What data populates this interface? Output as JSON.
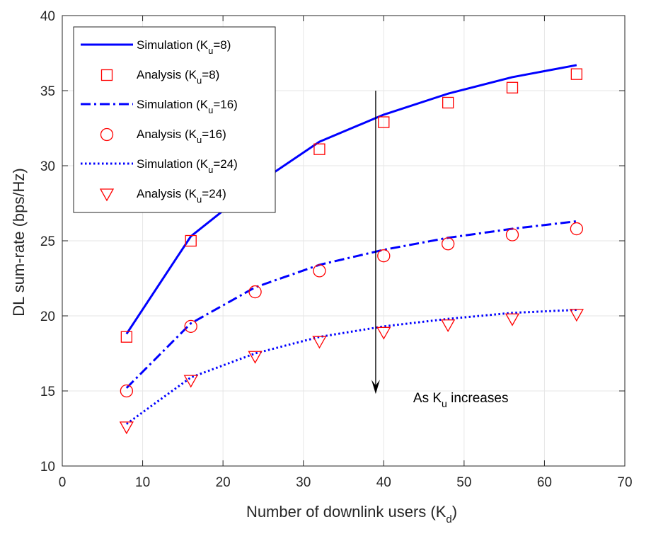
{
  "chart_data": {
    "type": "line",
    "xlabel": "Number of downlink users (K",
    "xlabel_sub": "d",
    "xlabel_end": ")",
    "ylabel": "DL sum-rate (bps/Hz)",
    "xlim": [
      0,
      70
    ],
    "ylim": [
      10,
      40
    ],
    "xticks": [
      0,
      10,
      20,
      30,
      40,
      50,
      60,
      70
    ],
    "yticks": [
      10,
      15,
      20,
      25,
      30,
      35,
      40
    ],
    "grid": true,
    "legend_position": "top-left",
    "x": [
      8,
      16,
      24,
      32,
      40,
      48,
      56,
      64
    ],
    "series": [
      {
        "name": "Simulation (K",
        "sub": "u",
        "suffix": "=8)",
        "kind": "line",
        "style": "solid",
        "color": "#0000ff",
        "values": [
          18.8,
          25.3,
          28.7,
          31.6,
          33.4,
          34.8,
          35.9,
          36.7
        ]
      },
      {
        "name": "Analysis (K",
        "sub": "u",
        "suffix": "=8)",
        "kind": "marker",
        "marker": "square",
        "color": "#ff0000",
        "values": [
          18.6,
          25.0,
          28.3,
          31.1,
          32.9,
          34.2,
          35.2,
          36.1
        ]
      },
      {
        "name": "Simulation (K",
        "sub": "u",
        "suffix": "=16)",
        "kind": "line",
        "style": "dashdot",
        "color": "#0000ff",
        "values": [
          15.2,
          19.5,
          21.9,
          23.4,
          24.4,
          25.2,
          25.8,
          26.3
        ]
      },
      {
        "name": "Analysis (K",
        "sub": "u",
        "suffix": "=16)",
        "kind": "marker",
        "marker": "circle",
        "color": "#ff0000",
        "values": [
          15.0,
          19.3,
          21.6,
          23.0,
          24.0,
          24.8,
          25.4,
          25.8
        ]
      },
      {
        "name": "Simulation (K",
        "sub": "u",
        "suffix": "=24)",
        "kind": "line",
        "style": "dotted",
        "color": "#0000ff",
        "values": [
          12.8,
          15.9,
          17.5,
          18.6,
          19.3,
          19.8,
          20.2,
          20.4
        ]
      },
      {
        "name": "Analysis (K",
        "sub": "u",
        "suffix": "=24)",
        "kind": "marker",
        "marker": "triangle-down",
        "color": "#ff0000",
        "values": [
          12.6,
          15.7,
          17.3,
          18.3,
          18.9,
          19.4,
          19.8,
          20.1
        ]
      }
    ],
    "annotation": {
      "text_main": "As K",
      "text_sub": "u",
      "text_end": " increases",
      "arrow_x": 39,
      "arrow_from_y": 35.0,
      "arrow_to_y": 14.8
    }
  }
}
